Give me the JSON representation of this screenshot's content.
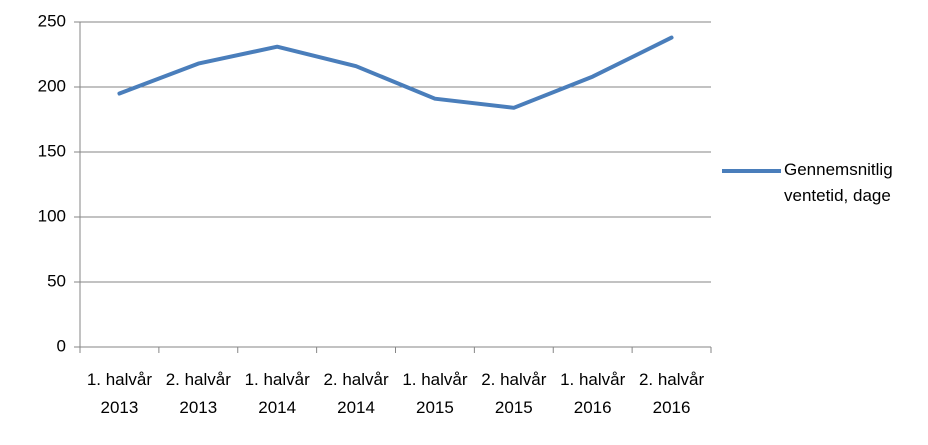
{
  "chart_data": {
    "type": "line",
    "categories": [
      "1. halvår 2013",
      "2. halvår 2013",
      "1. halvår 2014",
      "2. halvår 2014",
      "1. halvår 2015",
      "2. halvår 2015",
      "1. halvår 2016",
      "2. halvår 2016"
    ],
    "series": [
      {
        "name": "Gennemsnitlig ventetid, dage",
        "color": "#4a7ebb",
        "values": [
          195,
          218,
          231,
          216,
          191,
          184,
          208,
          238
        ]
      }
    ],
    "ylim": [
      0,
      250
    ],
    "yticks": [
      0,
      50,
      100,
      150,
      200,
      250
    ],
    "grid": true,
    "legend": "right"
  }
}
